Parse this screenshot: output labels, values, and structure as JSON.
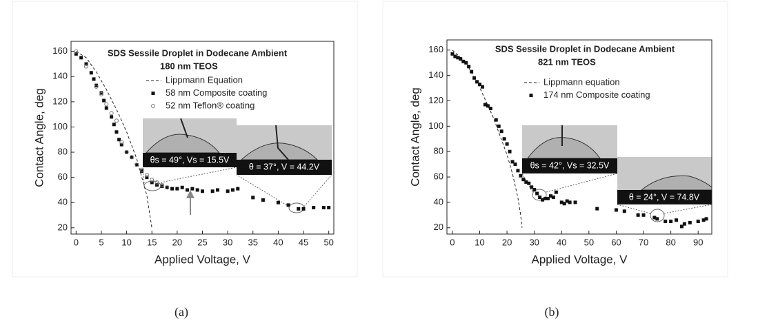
{
  "chart_data": [
    {
      "type": "scatter",
      "title": "SDS Sessile Droplet in Dodecane Ambient",
      "subtitle": "180 nm TEOS",
      "x_label": "Applied Voltage, V",
      "y_label": "Contact Angle, deg",
      "caption": "(a)",
      "xlim": [
        -1,
        51
      ],
      "ylim": [
        15,
        168
      ],
      "xticks": [
        0,
        5,
        10,
        15,
        20,
        25,
        30,
        35,
        40,
        45,
        50
      ],
      "yticks": [
        20,
        40,
        60,
        80,
        100,
        120,
        140,
        160
      ],
      "annotations": [
        "θs = 49°, Vs = 15.5V",
        "θ = 37°, V = 44.2V"
      ],
      "series": [
        {
          "name": "Lippmann Equation",
          "color": "#222222",
          "marker": "dashed-line",
          "x": [
            0,
            2,
            4,
            6,
            8,
            10,
            12,
            14,
            15
          ],
          "values": [
            160,
            155,
            143.7,
            129.7,
            113.9,
            96,
            74.7,
            45.6,
            19.8
          ]
        },
        {
          "name": "58 nm Composite coating",
          "color": "#111111",
          "marker": "square",
          "x": [
            0,
            1,
            2,
            3,
            3.5,
            4,
            5,
            5.5,
            6,
            7,
            7.5,
            8,
            8.5,
            9,
            10,
            11,
            12,
            13,
            14,
            15,
            16,
            17,
            18,
            19,
            20,
            21,
            22,
            23,
            24,
            25,
            27,
            28,
            30,
            31,
            32,
            35,
            37,
            40,
            42,
            44,
            45,
            47,
            49,
            50
          ],
          "values": [
            158,
            155,
            150,
            143,
            138,
            133,
            127,
            121,
            115,
            108,
            102,
            96,
            90,
            86,
            80,
            76,
            70,
            65,
            60,
            56,
            54,
            53,
            52,
            51,
            51,
            52,
            50,
            51,
            50,
            49,
            49,
            50,
            49,
            50,
            51,
            44,
            42,
            40,
            38,
            35,
            35,
            36,
            36,
            36
          ]
        },
        {
          "name": "52 nm Teflon® coating",
          "color": "#777777",
          "marker": "circle",
          "x": [
            0,
            2,
            4,
            5,
            6,
            7,
            8,
            9,
            10,
            11,
            12,
            13,
            14,
            15,
            16,
            17,
            18
          ],
          "values": [
            160,
            148,
            132,
            126,
            118,
            111,
            105,
            88,
            80,
            76,
            70,
            66,
            62,
            58,
            56,
            54,
            52
          ]
        }
      ]
    },
    {
      "type": "scatter",
      "title": "SDS Sessile Droplet in Dodecane Ambient",
      "subtitle": "821 nm TEOS",
      "x_label": "Applied Voltage, V",
      "y_label": "Contact Angle, deg",
      "caption": "(b)",
      "xlim": [
        -2,
        95
      ],
      "ylim": [
        15,
        168
      ],
      "xticks": [
        0,
        10,
        20,
        30,
        40,
        50,
        60,
        70,
        80,
        90
      ],
      "yticks": [
        20,
        40,
        60,
        80,
        100,
        120,
        140,
        160
      ],
      "annotations": [
        "θs = 42°, Vs = 32.5V",
        "θ = 24°, V = 74.8V"
      ],
      "series": [
        {
          "name": "Lippmann equation",
          "color": "#222222",
          "marker": "dashed-line",
          "x": [
            0,
            5,
            10,
            15,
            20,
            22,
            24,
            25,
            25.5
          ],
          "values": [
            160,
            150,
            130.5,
            106.8,
            77.5,
            62.7,
            43.5,
            30,
            20
          ]
        },
        {
          "name": "174 nm Composite coating",
          "color": "#111111",
          "marker": "square",
          "x": [
            0,
            1,
            2,
            3,
            4,
            5,
            6,
            7,
            8,
            9,
            10,
            11,
            12,
            13,
            14,
            16,
            17,
            18,
            19,
            20,
            21,
            22,
            23,
            24,
            25,
            26,
            27,
            28,
            29,
            30,
            31,
            32,
            33,
            34,
            35,
            36,
            37,
            38,
            40,
            41,
            42,
            43,
            45,
            53,
            60,
            63,
            68,
            70,
            74,
            75,
            78,
            80,
            82,
            84,
            85,
            87,
            90,
            92,
            93
          ],
          "values": [
            157,
            155,
            154,
            153,
            151,
            150,
            147,
            143,
            138,
            135,
            133,
            131,
            117,
            116,
            114,
            105,
            100,
            96,
            90,
            86,
            80,
            72,
            70,
            65,
            61,
            58,
            56,
            55,
            52,
            50,
            47,
            44,
            42,
            43,
            43,
            45,
            44,
            48,
            40,
            39,
            41,
            40,
            40,
            35,
            34,
            33,
            30,
            30,
            28,
            27,
            25,
            25,
            26,
            21,
            23,
            24,
            25,
            26,
            27
          ]
        }
      ]
    }
  ]
}
